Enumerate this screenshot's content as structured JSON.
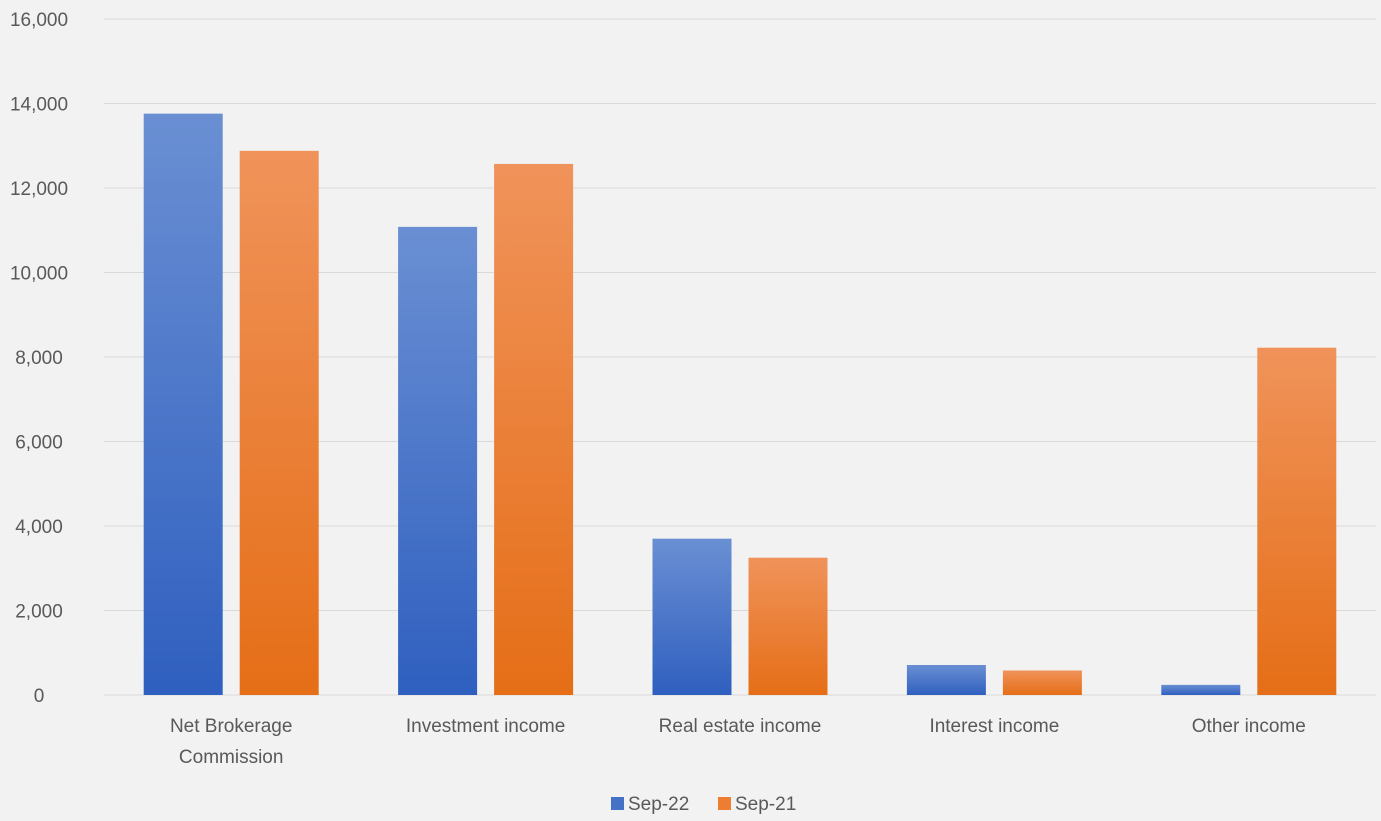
{
  "chart_data": {
    "type": "bar",
    "categories": [
      [
        "Net Brokerage",
        "Commission"
      ],
      [
        "Investment income"
      ],
      [
        "Real estate income"
      ],
      [
        "Interest income"
      ],
      [
        "Other income"
      ]
    ],
    "series": [
      {
        "name": "Sep-22",
        "color": "#4472c4",
        "gradient": [
          "#6a8fd3",
          "#2f5fbf"
        ],
        "values": [
          13760,
          11080,
          3700,
          710,
          240
        ]
      },
      {
        "name": "Sep-21",
        "color": "#ed7d31",
        "gradient": [
          "#f0935a",
          "#e56e17"
        ],
        "values": [
          12880,
          12570,
          3250,
          580,
          8220
        ]
      }
    ],
    "ylim": [
      0,
      16000
    ],
    "yticks": [
      0,
      2000,
      4000,
      6000,
      8000,
      10000,
      12000,
      14000,
      16000
    ],
    "grid": true,
    "legend": "bottom-center",
    "title": "",
    "xlabel": "",
    "ylabel": ""
  }
}
